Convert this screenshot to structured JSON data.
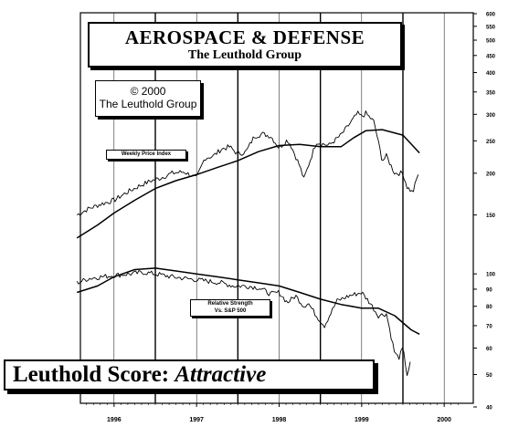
{
  "header": {
    "title": "AEROSPACE & DEFENSE",
    "subtitle": "The Leuthold Group"
  },
  "copyright": {
    "line1": "© 2000",
    "line2": "The Leuthold Group"
  },
  "score": {
    "label": "Leuthold Score:",
    "value": "Attractive"
  },
  "chart_data": {
    "type": "line",
    "scale": "log",
    "y_ticks": [
      40,
      50,
      60,
      70,
      80,
      90,
      100,
      150,
      200,
      250,
      300,
      350,
      400,
      450,
      500,
      550,
      600
    ],
    "x_ticks": [
      "1996",
      "1997",
      "1998",
      "1999",
      "2000"
    ],
    "panels": [
      {
        "name": "Weekly Price Index",
        "label": "Weekly Price Index",
        "series": [
          {
            "name": "Weekly Price Index",
            "x": [
              1995.55,
              1995.7,
              1995.85,
              1996.0,
              1996.15,
              1996.3,
              1996.45,
              1996.55,
              1996.7,
              1996.85,
              1997.0,
              1997.1,
              1997.2,
              1997.3,
              1997.4,
              1997.5,
              1997.6,
              1997.7,
              1997.8,
              1997.9,
              1998.0,
              1998.1,
              1998.15,
              1998.25,
              1998.3,
              1998.45,
              1998.6,
              1998.75,
              1998.85,
              1998.95,
              1999.0,
              1999.05,
              1999.15,
              1999.25,
              1999.3,
              1999.4,
              1999.5,
              1999.55,
              1999.62,
              1999.7
            ],
            "y": [
              150,
              157,
              162,
              166,
              175,
              183,
              190,
              193,
              200,
              202,
              193,
              222,
              225,
              236,
              240,
              228,
              232,
              258,
              262,
              258,
              238,
              252,
              240,
              210,
              192,
              248,
              242,
              260,
              280,
              302,
              295,
              302,
              285,
              218,
              225,
              200,
              200,
              182,
              175,
              205
            ]
          },
          {
            "name": "Moving Average",
            "x": [
              1995.55,
              1995.8,
              1996.0,
              1996.25,
              1996.5,
              1996.75,
              1997.0,
              1997.25,
              1997.5,
              1997.75,
              1998.0,
              1998.25,
              1998.5,
              1998.75,
              1998.9,
              1999.05,
              1999.25,
              1999.5,
              1999.7
            ],
            "y": [
              128,
              140,
              152,
              166,
              180,
              190,
              198,
              208,
              218,
              232,
              242,
              244,
              240,
              240,
              255,
              268,
              270,
              260,
              230
            ]
          }
        ]
      },
      {
        "name": "Relative Strength Vs. S&P 500",
        "label_line1": "Relative Strength",
        "label_line2": "Vs. S&P 500",
        "series": [
          {
            "name": "Relative Strength Vs. S&P 500",
            "x": [
              1995.55,
              1995.7,
              1995.85,
              1996.0,
              1996.2,
              1996.35,
              1996.5,
              1996.7,
              1996.85,
              1997.0,
              1997.15,
              1997.3,
              1997.45,
              1997.6,
              1997.75,
              1997.9,
              1998.0,
              1998.1,
              1998.2,
              1998.3,
              1998.35,
              1998.45,
              1998.55,
              1998.7,
              1998.85,
              1999.0,
              1999.1,
              1999.2,
              1999.3,
              1999.4,
              1999.45,
              1999.5,
              1999.55,
              1999.6
            ],
            "y": [
              94,
              97,
              98,
              99,
              100,
              101,
              100,
              98,
              97,
              96,
              95,
              94,
              92,
              92,
              91,
              87,
              88,
              82,
              86,
              80,
              82,
              75,
              70,
              83,
              86,
              88,
              82,
              75,
              76,
              58,
              56,
              60,
              50,
              55
            ]
          },
          {
            "name": "Moving Average",
            "x": [
              1995.55,
              1995.8,
              1996.0,
              1996.25,
              1996.5,
              1996.75,
              1997.0,
              1997.25,
              1997.5,
              1997.75,
              1998.0,
              1998.25,
              1998.5,
              1998.75,
              1999.0,
              1999.2,
              1999.4,
              1999.6,
              1999.7
            ],
            "y": [
              88,
              92,
              98,
              103,
              104,
              102,
              100,
              98,
              96,
              94,
              92,
              88,
              84,
              81,
              79,
              79,
              75,
              68,
              66
            ]
          }
        ]
      }
    ],
    "grid": "vertical-at-years"
  }
}
